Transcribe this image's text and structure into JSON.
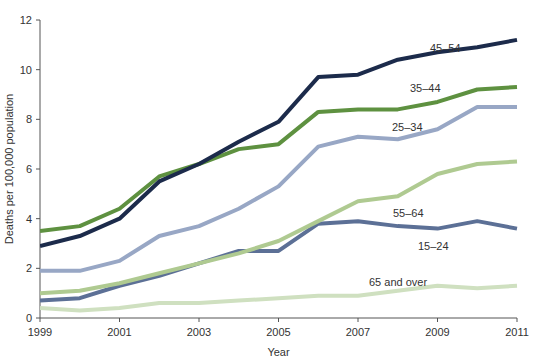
{
  "chart_data": {
    "type": "line",
    "x_label": "Year",
    "y_label": "Deaths per 100,000 population",
    "x": [
      1999,
      2000,
      2001,
      2002,
      2003,
      2004,
      2005,
      2006,
      2007,
      2008,
      2009,
      2010,
      2011
    ],
    "xlim": [
      1999,
      2011
    ],
    "xticks": [
      1999,
      2001,
      2003,
      2005,
      2007,
      2009,
      2011
    ],
    "ylim": [
      0,
      12
    ],
    "yticks": [
      0,
      2,
      4,
      6,
      8,
      10,
      12
    ],
    "grid": false,
    "series": [
      {
        "name": "45–54",
        "color": "#1c2b4b",
        "values": [
          2.9,
          3.3,
          4.0,
          5.5,
          6.2,
          7.1,
          7.9,
          9.7,
          9.8,
          10.4,
          10.7,
          10.9,
          11.2
        ]
      },
      {
        "name": "35–44",
        "color": "#5e9140",
        "values": [
          3.5,
          3.7,
          4.4,
          5.7,
          6.2,
          6.8,
          7.0,
          8.3,
          8.4,
          8.4,
          8.7,
          9.2,
          9.3
        ]
      },
      {
        "name": "25–34",
        "color": "#98a7c5",
        "values": [
          1.9,
          1.9,
          2.3,
          3.3,
          3.7,
          4.4,
          5.3,
          6.9,
          7.3,
          7.2,
          7.6,
          8.5,
          8.5
        ]
      },
      {
        "name": "55–64",
        "color": "#afca91",
        "values": [
          1.0,
          1.1,
          1.4,
          1.8,
          2.2,
          2.6,
          3.1,
          3.9,
          4.7,
          4.9,
          5.8,
          6.2,
          6.3
        ]
      },
      {
        "name": "15–24",
        "color": "#5c7096",
        "values": [
          0.7,
          0.8,
          1.3,
          1.7,
          2.2,
          2.7,
          2.7,
          3.8,
          3.9,
          3.7,
          3.6,
          3.9,
          3.6
        ]
      },
      {
        "name": "65 and over",
        "color": "#cfe0c0",
        "values": [
          0.4,
          0.3,
          0.4,
          0.6,
          0.6,
          0.7,
          0.8,
          0.9,
          0.9,
          1.1,
          1.3,
          1.2,
          1.3
        ]
      }
    ]
  }
}
